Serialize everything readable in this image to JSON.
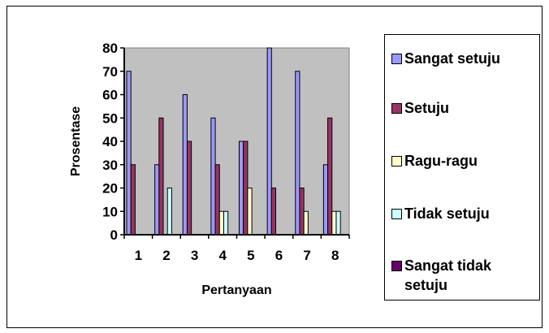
{
  "chart_data": {
    "type": "bar",
    "title": "",
    "xlabel": "Pertanyaan",
    "ylabel": "Prosentase",
    "ylim": [
      0,
      80
    ],
    "yticks": [
      "0",
      "10",
      "20",
      "30",
      "40",
      "50",
      "60",
      "70",
      "80"
    ],
    "categories": [
      "1",
      "2",
      "3",
      "4",
      "5",
      "6",
      "7",
      "8"
    ],
    "grid": false,
    "legend_position": "right",
    "series": [
      {
        "name": "Sangat setuju",
        "color": "#9999ff",
        "values": [
          70,
          30,
          60,
          50,
          40,
          80,
          70,
          30
        ]
      },
      {
        "name": "Setuju",
        "color": "#993366",
        "values": [
          30,
          50,
          40,
          30,
          40,
          20,
          20,
          50
        ]
      },
      {
        "name": "Ragu-ragu",
        "color": "#ffffcc",
        "values": [
          0,
          0,
          0,
          10,
          20,
          0,
          10,
          10
        ]
      },
      {
        "name": "Tidak setuju",
        "color": "#ccffff",
        "values": [
          0,
          20,
          0,
          10,
          0,
          0,
          0,
          10
        ]
      },
      {
        "name": "Sangat tidak setuju",
        "color": "#660066",
        "values": [
          0,
          0,
          0,
          0,
          0,
          0,
          0,
          0
        ]
      }
    ],
    "plot_background": "#c0c0c0"
  }
}
